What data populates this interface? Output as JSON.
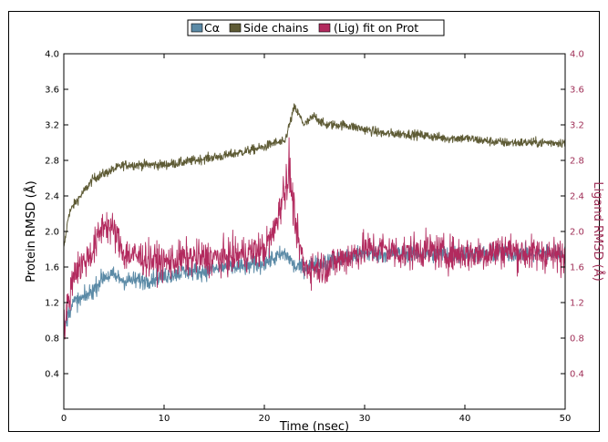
{
  "chart_data": {
    "type": "line",
    "xlabel": "Time (nsec)",
    "ylabel_left": "Protein RMSD (Å)",
    "ylabel_right": "Ligand RMSD (Å)",
    "xlim": [
      0,
      50
    ],
    "ylim_left": [
      0,
      4.0
    ],
    "ylim_right": [
      0,
      4.0
    ],
    "x_ticks": [
      "0",
      "10",
      "20",
      "30",
      "40",
      "50"
    ],
    "y_ticks_left": [
      "0.4",
      "0.8",
      "1.2",
      "1.6",
      "2.0",
      "2.4",
      "2.8",
      "3.2",
      "3.6",
      "4.0"
    ],
    "y_ticks_right": [
      "0.4",
      "0.8",
      "1.2",
      "1.6",
      "2.0",
      "2.4",
      "2.8",
      "3.2",
      "3.6",
      "4.0"
    ],
    "grid": false,
    "legend_position": "top-center",
    "colors": {
      "ca": "#5b8aa6",
      "side": "#5e5b35",
      "lig": "#b22a5e",
      "right_axis": "#a03058"
    },
    "series": [
      {
        "name": "Cα",
        "axis": "left",
        "color": "#5b8aa6",
        "x": [
          0,
          0.5,
          1,
          2,
          3,
          4,
          5,
          6,
          8,
          10,
          12,
          14,
          16,
          18,
          20,
          21,
          22,
          22.5,
          23,
          24,
          26,
          28,
          30,
          32,
          34,
          36,
          38,
          40,
          42,
          44,
          46,
          48,
          50
        ],
        "y": [
          0.9,
          1.1,
          1.2,
          1.25,
          1.35,
          1.5,
          1.5,
          1.45,
          1.45,
          1.5,
          1.55,
          1.55,
          1.6,
          1.6,
          1.65,
          1.7,
          1.75,
          1.7,
          1.6,
          1.6,
          1.65,
          1.7,
          1.75,
          1.75,
          1.75,
          1.75,
          1.75,
          1.75,
          1.75,
          1.75,
          1.75,
          1.75,
          1.75
        ]
      },
      {
        "name": "Side chains",
        "axis": "left",
        "color": "#5e5b35",
        "x": [
          0,
          0.5,
          1,
          2,
          3,
          4,
          5,
          6,
          8,
          10,
          12,
          14,
          16,
          18,
          20,
          21,
          22,
          22.5,
          23,
          24,
          25,
          26,
          28,
          30,
          32,
          34,
          36,
          38,
          40,
          42,
          44,
          46,
          48,
          50
        ],
        "y": [
          1.8,
          2.2,
          2.3,
          2.45,
          2.6,
          2.65,
          2.7,
          2.75,
          2.75,
          2.75,
          2.78,
          2.82,
          2.85,
          2.9,
          2.95,
          3.0,
          3.0,
          3.2,
          3.4,
          3.2,
          3.3,
          3.2,
          3.2,
          3.15,
          3.1,
          3.1,
          3.08,
          3.05,
          3.05,
          3.02,
          3.0,
          3.0,
          3.0,
          3.0
        ]
      },
      {
        "name": "(Lig) fit on Prot",
        "axis": "right",
        "color": "#b22a5e",
        "x": [
          0,
          1,
          2,
          3,
          4,
          5,
          6,
          8,
          10,
          12,
          14,
          16,
          18,
          20,
          21,
          22,
          22.5,
          23,
          24,
          26,
          28,
          30,
          32,
          34,
          36,
          38,
          40,
          42,
          44,
          46,
          48,
          50
        ],
        "y": [
          0.9,
          1.55,
          1.65,
          1.8,
          2.1,
          2.0,
          1.75,
          1.7,
          1.65,
          1.7,
          1.7,
          1.7,
          1.75,
          1.8,
          2.0,
          2.5,
          2.7,
          2.1,
          1.6,
          1.6,
          1.7,
          1.8,
          1.8,
          1.75,
          1.8,
          1.75,
          1.75,
          1.75,
          1.8,
          1.75,
          1.75,
          1.7
        ]
      }
    ]
  }
}
